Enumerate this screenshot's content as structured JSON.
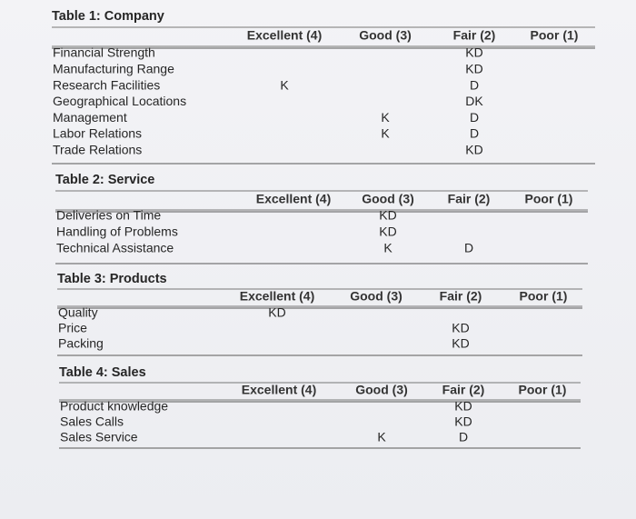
{
  "tables": [
    {
      "title": "Table 1: Company",
      "headers": [
        "Excellent (4)",
        "Good (3)",
        "Fair (2)",
        "Poor (1)"
      ],
      "rows": [
        {
          "label": "Financial Strength",
          "fair": "KD"
        },
        {
          "label": "Manufacturing Range",
          "fair": "KD"
        },
        {
          "label": "Research Facilities",
          "excellent": "K",
          "fair": "D"
        },
        {
          "label": "Geographical Locations",
          "fair": "DK"
        },
        {
          "label": "Management",
          "good": "K",
          "fair": "D"
        },
        {
          "label": "Labor Relations",
          "good": "K",
          "fair": "D"
        },
        {
          "label": "Trade Relations",
          "fair": "KD"
        }
      ]
    },
    {
      "title": "Table 2: Service",
      "headers": [
        "Excellent (4)",
        "Good (3)",
        "Fair (2)",
        "Poor (1)"
      ],
      "rows": [
        {
          "label": "Deliveries on Time",
          "good": "KD"
        },
        {
          "label": "Handling of Problems",
          "good": "KD"
        },
        {
          "label": "Technical Assistance",
          "good": "K",
          "fair": "D"
        }
      ]
    },
    {
      "title": "Table 3: Products",
      "headers": [
        "Excellent (4)",
        "Good (3)",
        "Fair (2)",
        "Poor (1)"
      ],
      "rows": [
        {
          "label": "Quality",
          "excellent": "KD"
        },
        {
          "label": "Price",
          "fair": "KD"
        },
        {
          "label": "Packing",
          "fair": "KD"
        }
      ]
    },
    {
      "title": "Table 4: Sales",
      "headers": [
        "Excellent (4)",
        "Good (3)",
        "Fair (2)",
        "Poor (1)"
      ],
      "rows": [
        {
          "label": "Product knowledge",
          "fair": "KD"
        },
        {
          "label": "Sales Calls",
          "fair": "KD"
        },
        {
          "label": "Sales Service",
          "good": "K",
          "fair": "D"
        }
      ]
    }
  ]
}
